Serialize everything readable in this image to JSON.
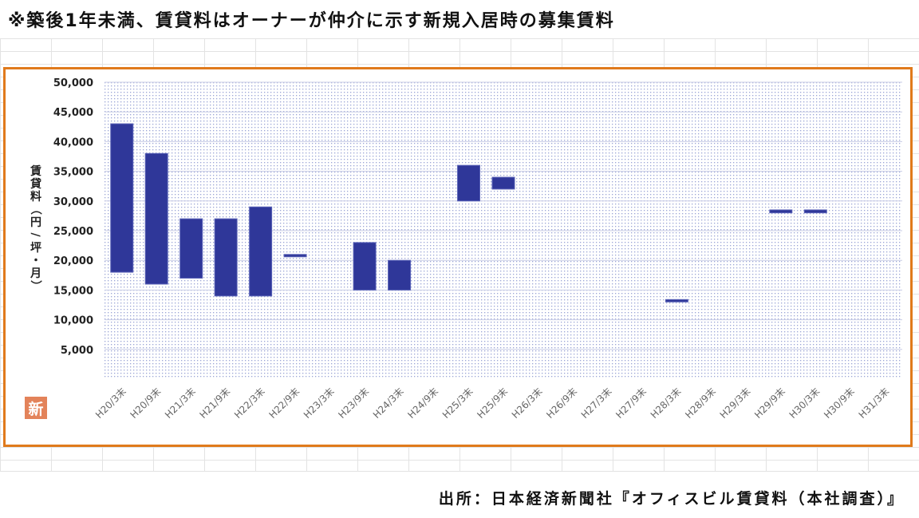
{
  "note": "※築後1年未満、賃貸料はオーナーが仲介に示す新規入居時の募集賃料",
  "badge": "新",
  "source": "出所：日本経済新聞社『オフィスビル賃貸料（本社調査）』",
  "colors": {
    "bar": "#2f3799",
    "frame": "#e07a1c",
    "plot_dots": "#9aa3d6"
  },
  "chart_data": {
    "type": "bar",
    "subtype": "floating-range",
    "ylabel": "賃貸料（円/坪・月）",
    "xlabel": "",
    "ylim": [
      0,
      50000
    ],
    "yticks": [
      5000,
      10000,
      15000,
      20000,
      25000,
      30000,
      35000,
      40000,
      45000,
      50000
    ],
    "ytick_labels": [
      "5,000",
      "10,000",
      "15,000",
      "20,000",
      "25,000",
      "30,000",
      "35,000",
      "40,000",
      "45,000",
      "50,000"
    ],
    "grid": true,
    "legend": "none",
    "categories": [
      "H20/3末",
      "H20/9末",
      "H21/3末",
      "H21/9末",
      "H22/3末",
      "H22/9末",
      "H23/3末",
      "H23/9末",
      "H24/3末",
      "H24/9末",
      "H25/3末",
      "H25/9末",
      "H26/3末",
      "H26/9末",
      "H27/3末",
      "H27/9末",
      "H28/3末",
      "H28/9末",
      "H29/3末",
      "H29/9末",
      "H30/3末",
      "H30/9末",
      "H31/3末"
    ],
    "series": [
      {
        "low": [
          18000,
          16000,
          17000,
          14000,
          14000,
          20600,
          null,
          15000,
          15000,
          null,
          30000,
          32000,
          null,
          null,
          null,
          null,
          13000,
          null,
          null,
          28000,
          28000,
          null,
          null
        ],
        "high": [
          43000,
          38000,
          27000,
          27000,
          29000,
          21000,
          null,
          23000,
          20000,
          null,
          36000,
          34000,
          null,
          null,
          null,
          null,
          13400,
          null,
          null,
          28500,
          28500,
          null,
          null
        ]
      }
    ]
  }
}
